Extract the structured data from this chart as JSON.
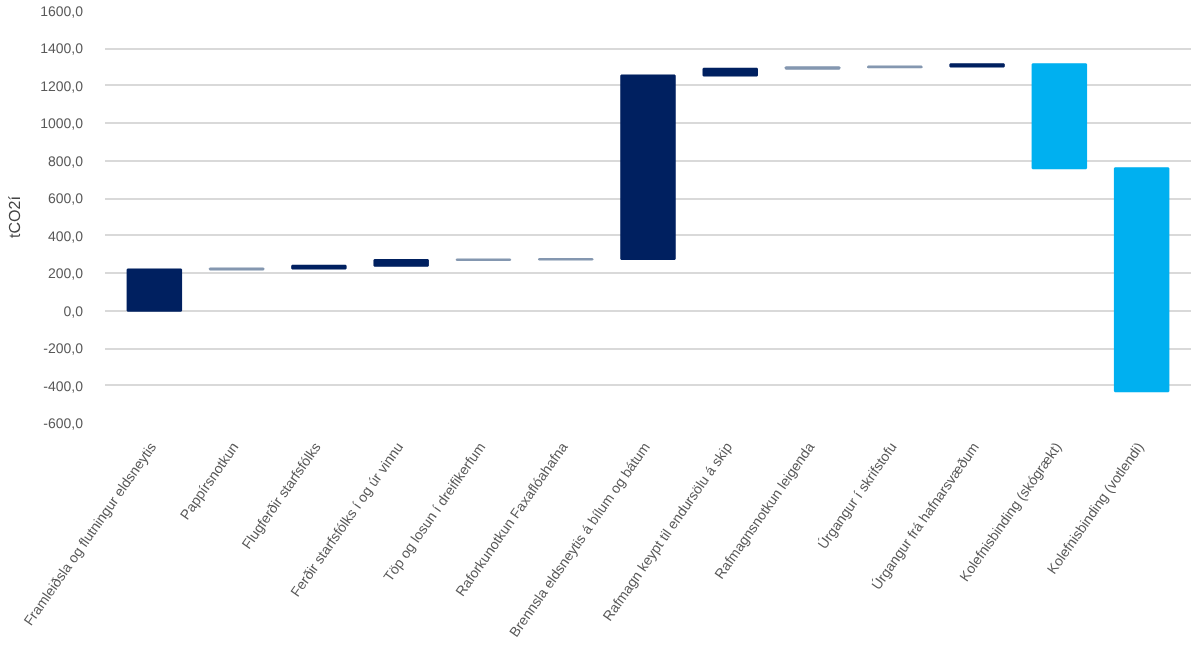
{
  "chart_data": {
    "type": "bar",
    "ylabel": "tCO2í",
    "categories": [
      "Framleiðsla og flutningur eldsneytis",
      "Pappírsnotkun",
      "Flugferðir starfsfólks",
      "Ferðir starfsfólks í og úr vinnu",
      "Töp og losun í dreifikerfum",
      "Raforkunotkun Faxaflóahafna",
      "Brennsla eldsneytis á bílum og bátum",
      "Rafmagn keypt til endursölu á skip",
      "Rafmagnsnotkun leigenda",
      "Úrgangur í skrifstofu",
      "Úrgangur frá hafnarsvæðum",
      "Kolefnisbinding (skógrækt)",
      "Kolefnisbinding (votlendi)"
    ],
    "base": [
      0,
      220,
      225,
      240,
      270,
      273,
      276,
      1256,
      1291,
      1299,
      1303,
      1315,
      760
    ],
    "values": [
      220,
      5,
      15,
      30,
      3,
      3,
      980,
      35,
      8,
      4,
      12,
      -555,
      -1190
    ],
    "colors": [
      "#002060",
      "#8497b0",
      "#002060",
      "#002060",
      "#8497b0",
      "#8497b0",
      "#002060",
      "#002060",
      "#8497b0",
      "#8497b0",
      "#002060",
      "#00b0f0",
      "#00b0f0"
    ],
    "ylim": [
      -600,
      1600
    ],
    "yticks": [
      {
        "value": -600,
        "label": "-600,0"
      },
      {
        "value": -400,
        "label": "-400,0"
      },
      {
        "value": -200,
        "label": "-200,0"
      },
      {
        "value": 0,
        "label": "0,0"
      },
      {
        "value": 200,
        "label": "200,0"
      },
      {
        "value": 400,
        "label": "400,0"
      },
      {
        "value": 600,
        "label": "600,0"
      },
      {
        "value": 800,
        "label": "800,0"
      },
      {
        "value": 1000,
        "label": "1000,0"
      },
      {
        "value": 1200,
        "label": "1200,0"
      },
      {
        "value": 1400,
        "label": "1400,0"
      },
      {
        "value": 1600,
        "label": "1600,0"
      }
    ],
    "grid": "y"
  }
}
